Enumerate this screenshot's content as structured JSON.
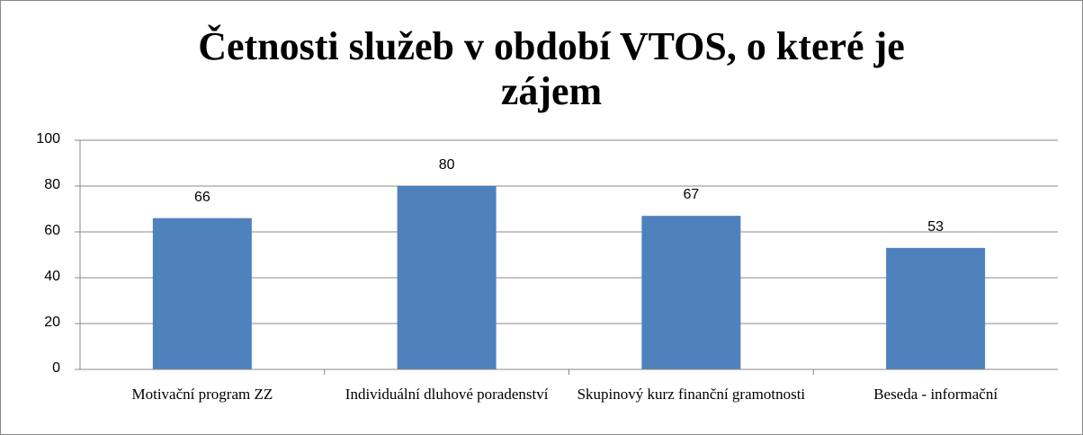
{
  "chart_data": {
    "type": "bar",
    "title": "Četnosti služeb v období VTOS, o které je zájem",
    "categories": [
      "Motivační program ZZ",
      "Individuální dluhové poradenství",
      "Skupinový kurz finanční gramotnosti",
      "Beseda - informační"
    ],
    "values": [
      66,
      80,
      67,
      53
    ],
    "color": "#4f81bd",
    "ylim": [
      0,
      100
    ],
    "yticks": [
      0,
      20,
      40,
      60,
      80,
      100
    ],
    "grid": true
  }
}
